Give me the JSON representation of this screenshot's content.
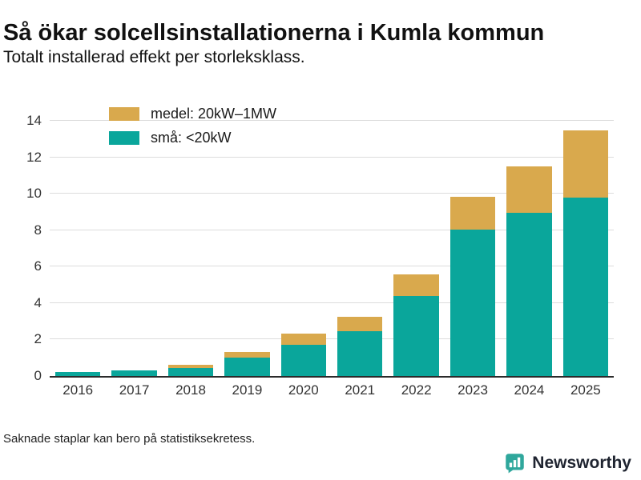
{
  "title": "Så ökar solcellsinstallationerna i Kumla kommun",
  "subtitle": "Totalt installerad effekt per storleksklass.",
  "footnote": "Saknade staplar kan bero på statistiksekretess.",
  "branding": {
    "name": "Newsworthy",
    "icon": "bar-chart-speech-bubble-icon",
    "color": "#2fa79c"
  },
  "colors": {
    "teal": "#0aa69b",
    "tan": "#d9a94d",
    "axis": "#2b2b2b",
    "grid": "#dcdcdc",
    "text": "#1a1a1a"
  },
  "chart_data": {
    "type": "bar",
    "stacked": true,
    "title": "Så ökar solcellsinstallationerna i Kumla kommun",
    "subtitle": "Totalt installerad effekt per storleksklass.",
    "xlabel": "",
    "ylabel": "",
    "categories": [
      "2016",
      "2017",
      "2018",
      "2019",
      "2020",
      "2021",
      "2022",
      "2023",
      "2024",
      "2025"
    ],
    "series": [
      {
        "name": "små: <20kW",
        "color_key": "teal",
        "values": [
          0.22,
          0.32,
          0.45,
          1.0,
          1.7,
          2.45,
          4.4,
          8.05,
          8.95,
          9.8
        ]
      },
      {
        "name": "medel: 20kW–1MW",
        "color_key": "tan",
        "values": [
          0,
          0,
          0.15,
          0.3,
          0.65,
          0.8,
          1.2,
          1.8,
          2.55,
          3.7
        ]
      }
    ],
    "totals": [
      0.22,
      0.32,
      0.6,
      1.3,
      2.35,
      3.25,
      5.6,
      9.85,
      11.5,
      13.5
    ],
    "legend": [
      {
        "label": "medel: 20kW–1MW",
        "color_key": "tan"
      },
      {
        "label": "små: <20kW",
        "color_key": "teal"
      }
    ],
    "legend_position": "top-left",
    "ylim": [
      0,
      14
    ],
    "yticks": [
      0,
      2,
      4,
      6,
      8,
      10,
      12,
      14
    ],
    "grid": true
  }
}
